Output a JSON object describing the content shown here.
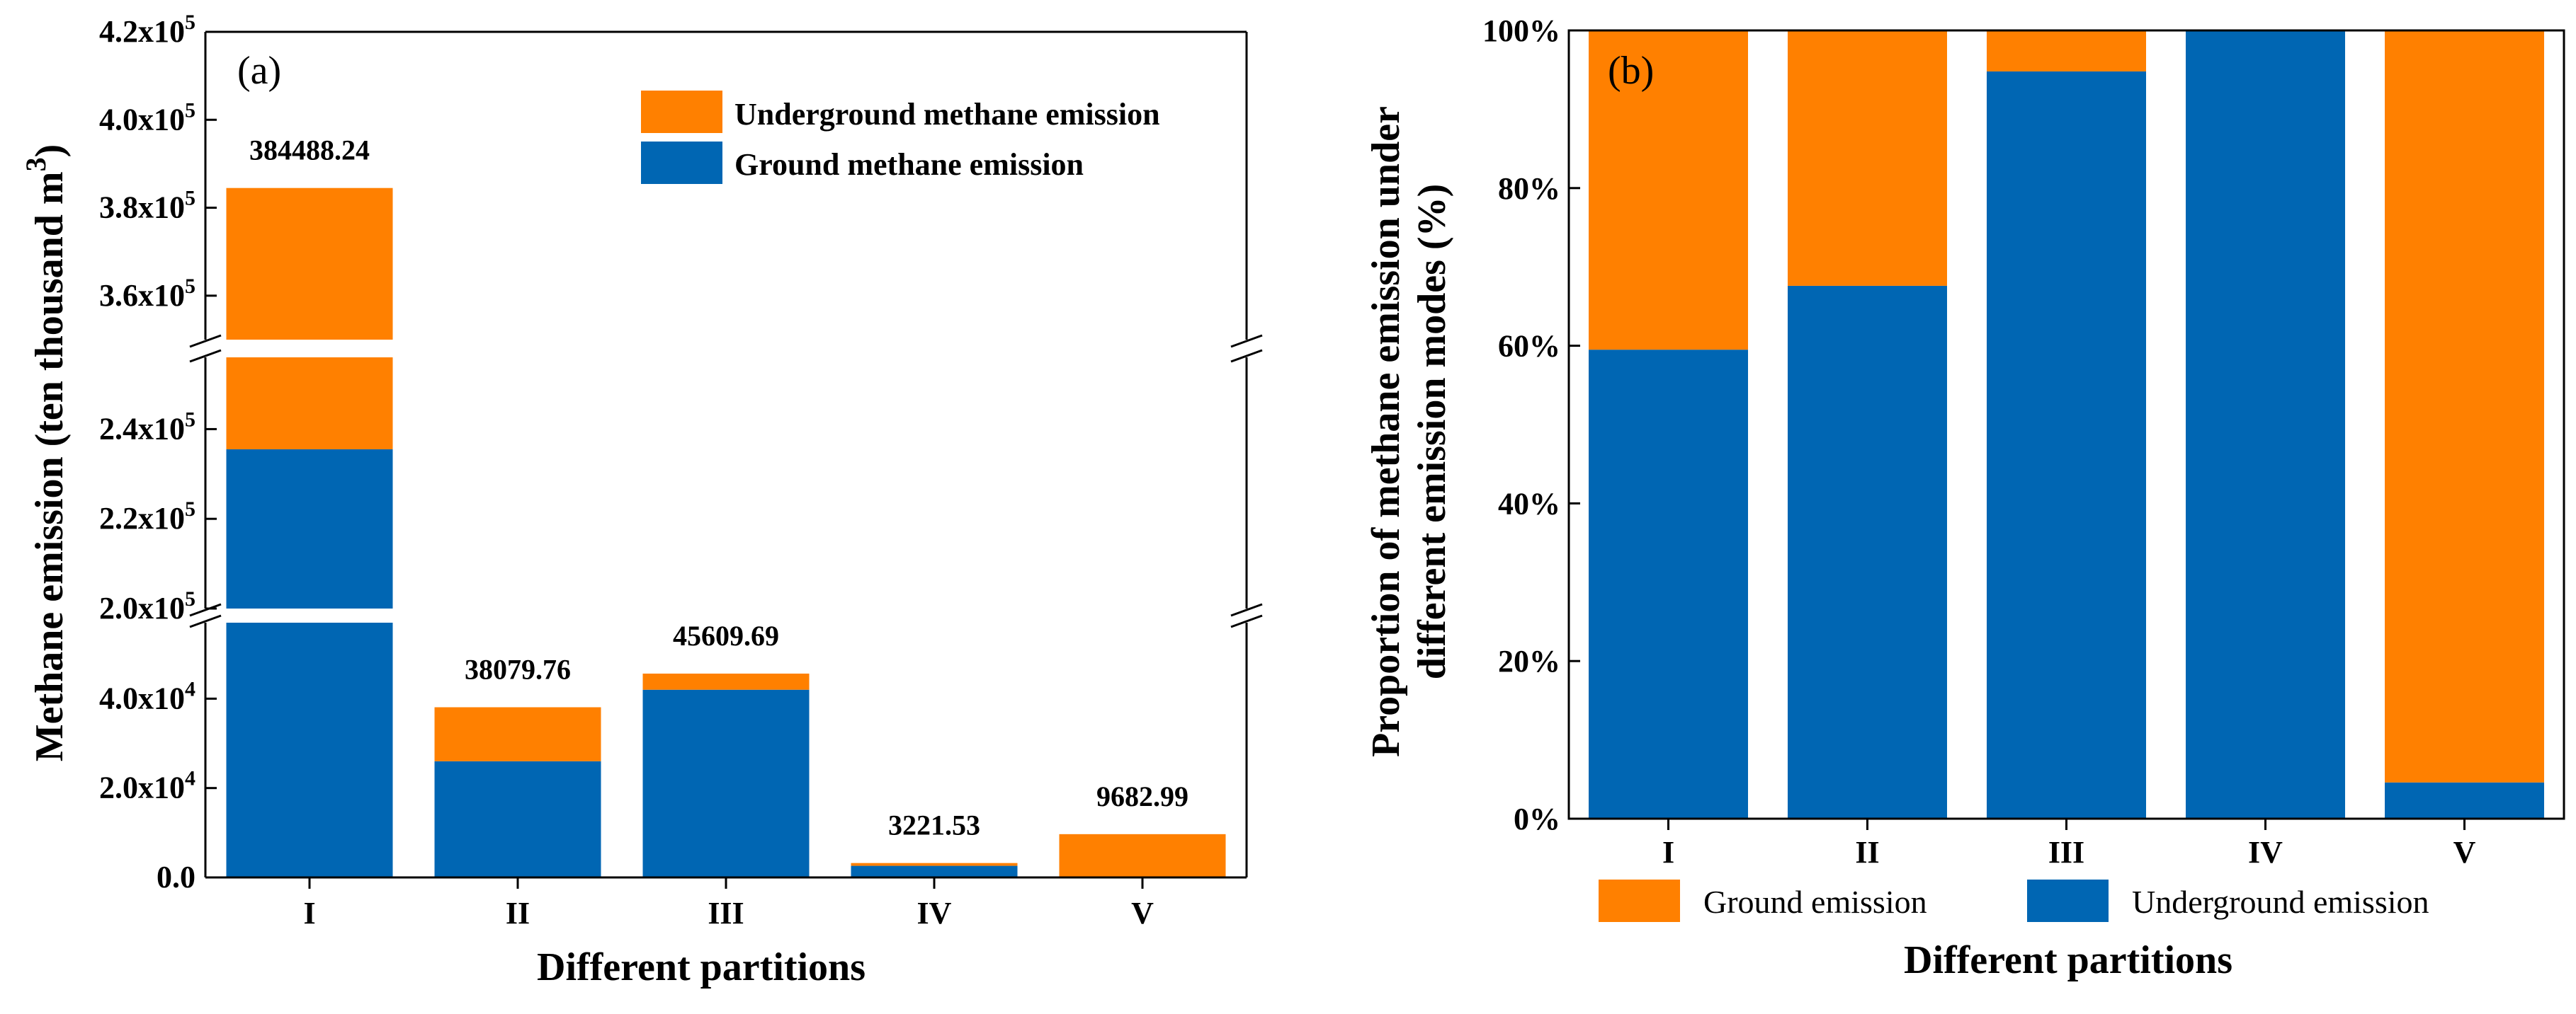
{
  "chart_data": [
    {
      "panel": "(a)",
      "type": "bar",
      "stacked": true,
      "broken_y_axis": true,
      "xlabel": "Different partitions",
      "ylabel": "Methane emission (ten thousand m",
      "ylabel_sup": "3",
      "ylabel_close": ")",
      "categories": [
        "I",
        "II",
        "III",
        "IV",
        "V"
      ],
      "series": [
        {
          "name": "Ground methane emission",
          "color": "#0066B3",
          "values": [
            235500,
            26000,
            42000,
            2600,
            0
          ]
        },
        {
          "name": "Underground methane emission",
          "color": "#FF8000",
          "values": [
            148988.24,
            12079.76,
            3609.69,
            621.53,
            9682.99
          ]
        }
      ],
      "totals_labels": [
        "384488.24",
        "38079.76",
        "45609.69",
        "3221.53",
        "9682.99"
      ],
      "y_segments": [
        {
          "range": [
            0,
            57000
          ],
          "ticks": [
            {
              "value": 0,
              "mant": "0.0",
              "exp": ""
            },
            {
              "value": 20000,
              "mant": "2.0x10",
              "exp": "4"
            },
            {
              "value": 40000,
              "mant": "4.0x10",
              "exp": "4"
            }
          ]
        },
        {
          "range": [
            200000,
            256000
          ],
          "ticks": [
            {
              "value": 200000,
              "mant": "2.0x10",
              "exp": "5"
            },
            {
              "value": 220000,
              "mant": "2.2x10",
              "exp": "5"
            },
            {
              "value": 240000,
              "mant": "2.4x10",
              "exp": "5"
            }
          ]
        },
        {
          "range": [
            350000,
            420000
          ],
          "ticks": [
            {
              "value": 360000,
              "mant": "3.6x10",
              "exp": "5"
            },
            {
              "value": 380000,
              "mant": "3.8x10",
              "exp": "5"
            },
            {
              "value": 400000,
              "mant": "4.0x10",
              "exp": "5"
            },
            {
              "value": 420000,
              "mant": "4.2x10",
              "exp": "5"
            }
          ]
        }
      ],
      "legend_position": "top-right"
    },
    {
      "panel": "(b)",
      "type": "bar",
      "stacked": true,
      "percent": true,
      "xlabel": "Different partitions",
      "ylabel_line1": "Proportion of methane emission under",
      "ylabel_line2": "different emission modes (%)",
      "categories": [
        "I",
        "II",
        "III",
        "IV",
        "V"
      ],
      "series": [
        {
          "name": "Underground emission",
          "color": "#0066B3",
          "values": [
            59.5,
            67.6,
            94.8,
            100,
            4.6
          ]
        },
        {
          "name": "Ground emission",
          "color": "#FF8000",
          "values": [
            40.5,
            32.4,
            5.2,
            0,
            95.4
          ]
        }
      ],
      "ylim": [
        0,
        100
      ],
      "yticks": [
        "0%",
        "20%",
        "40%",
        "60%",
        "80%",
        "100%"
      ],
      "legend_position": "bottom"
    }
  ]
}
